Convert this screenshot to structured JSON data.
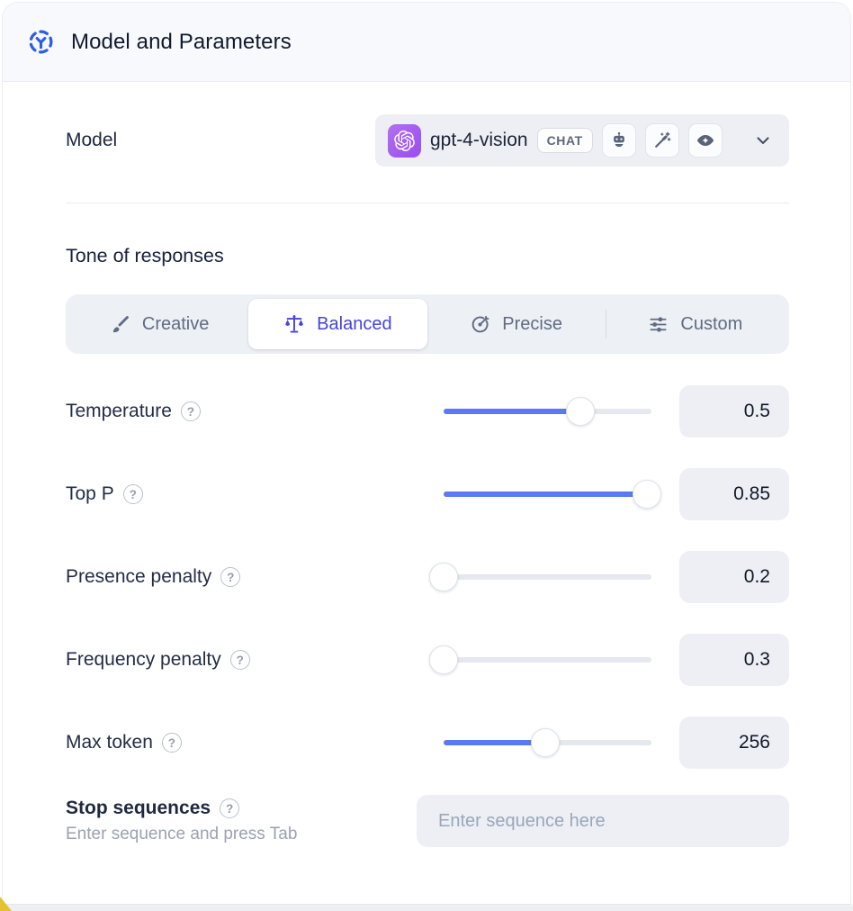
{
  "header": {
    "title": "Model and Parameters"
  },
  "model": {
    "label": "Model",
    "name": "gpt-4-vision",
    "type_badge": "CHAT",
    "provider_icon": "openai-logo-icon",
    "capability_icons": [
      "bot-icon",
      "magic-wand-icon",
      "vision-eye-icon"
    ]
  },
  "tone": {
    "heading": "Tone of responses",
    "tabs": [
      {
        "label": "Creative",
        "icon": "brush-icon",
        "selected": false
      },
      {
        "label": "Balanced",
        "icon": "scales-icon",
        "selected": true
      },
      {
        "label": "Precise",
        "icon": "target-icon",
        "selected": false
      },
      {
        "label": "Custom",
        "icon": "sliders-icon",
        "selected": false
      }
    ]
  },
  "parameters": [
    {
      "label": "Temperature",
      "value": "0.5",
      "fill_pct": 66
    },
    {
      "label": "Top P",
      "value": "0.85",
      "fill_pct": 98
    },
    {
      "label": "Presence penalty",
      "value": "0.2",
      "fill_pct": 0
    },
    {
      "label": "Frequency penalty",
      "value": "0.3",
      "fill_pct": 0
    },
    {
      "label": "Max token",
      "value": "256",
      "fill_pct": 49
    }
  ],
  "stop": {
    "label": "Stop sequences",
    "hint": "Enter sequence and press Tab",
    "placeholder": "Enter sequence here"
  },
  "colors": {
    "accent_indigo": "#4542df",
    "slider_fill_blue": "#5b79f3",
    "header_icon_blue": "#2d5ce8",
    "provider_purple": "#a55ef0",
    "field_bg": "#edeff4",
    "corner_yellow": "#e3c231"
  }
}
